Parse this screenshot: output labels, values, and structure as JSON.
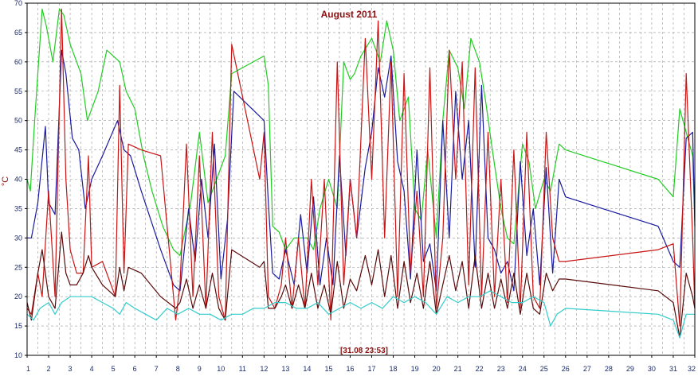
{
  "chart_data": {
    "type": "line",
    "title": "August 2011",
    "ylabel": "°C",
    "xlabel": "",
    "status": "[31.08 23:53]",
    "xlim": [
      1,
      32
    ],
    "ylim": [
      10,
      70
    ],
    "x_ticks": [
      1,
      2,
      3,
      4,
      5,
      6,
      7,
      8,
      9,
      10,
      11,
      12,
      13,
      14,
      15,
      16,
      17,
      18,
      19,
      20,
      21,
      22,
      23,
      24,
      25,
      26,
      27,
      28,
      29,
      30,
      31,
      32
    ],
    "y_ticks": [
      10,
      15,
      20,
      25,
      30,
      35,
      40,
      45,
      50,
      55,
      60,
      65,
      70
    ],
    "grid": true,
    "legend": "none",
    "series": [
      {
        "color": "#22cc22",
        "x": [
          1.0,
          1.15,
          1.35,
          1.7,
          1.9,
          2.2,
          2.5,
          2.7,
          3.0,
          3.5,
          3.8,
          4.3,
          4.7,
          5.3,
          5.6,
          6.0,
          6.4,
          6.8,
          7.3,
          7.8,
          8.1,
          8.6,
          9.0,
          9.4,
          10.2,
          10.5,
          12.0,
          12.2,
          12.4,
          12.7,
          13.0,
          13.4,
          14.0,
          14.3,
          14.6,
          15.0,
          15.4,
          15.7,
          16.0,
          16.2,
          16.5,
          17.0,
          17.4,
          17.7,
          18.0,
          18.3,
          18.7,
          19.0,
          19.3,
          19.6,
          20.0,
          20.3,
          20.6,
          21.0,
          21.3,
          21.6,
          22.0,
          22.3,
          22.6,
          23.0,
          23.3,
          23.6,
          24.0,
          24.3,
          24.6,
          25.0,
          25.3,
          25.7,
          26.0,
          30.3,
          31.0,
          31.3,
          31.6,
          31.9,
          32.0
        ],
        "y": [
          40,
          38,
          50,
          69,
          66,
          60,
          69,
          68,
          63,
          58,
          50,
          55,
          62,
          60,
          55,
          52,
          44,
          38,
          32,
          28,
          27,
          36,
          48,
          36,
          44,
          58,
          61,
          56,
          32,
          31,
          28,
          30,
          30,
          28,
          35,
          40,
          35,
          60,
          57,
          58,
          61,
          64,
          60,
          67,
          62,
          50,
          54,
          35,
          33,
          45,
          30,
          50,
          62,
          59,
          52,
          64,
          60,
          53,
          45,
          35,
          30,
          29,
          46,
          43,
          35,
          40,
          38,
          46,
          45,
          40,
          37,
          52,
          48,
          44,
          33
        ],
        "width": 1.2
      },
      {
        "color": "#1a1aa0",
        "x": [
          1.0,
          1.2,
          1.5,
          1.85,
          2.0,
          2.3,
          2.6,
          2.8,
          3.1,
          3.4,
          3.7,
          4.0,
          4.5,
          5.2,
          5.5,
          5.8,
          6.3,
          7.2,
          7.8,
          8.1,
          8.5,
          8.8,
          9.1,
          9.4,
          9.7,
          10.0,
          10.3,
          10.6,
          12.0,
          12.2,
          12.4,
          12.7,
          13.0,
          13.4,
          13.7,
          14.0,
          14.3,
          14.6,
          14.9,
          15.2,
          15.5,
          15.8,
          16.0,
          16.3,
          16.7,
          17.0,
          17.3,
          17.6,
          17.9,
          18.2,
          18.5,
          18.8,
          19.1,
          19.4,
          19.7,
          20.0,
          20.3,
          20.6,
          20.9,
          21.2,
          21.5,
          21.8,
          22.1,
          22.4,
          22.7,
          23.0,
          23.3,
          23.6,
          23.9,
          24.2,
          24.5,
          24.8,
          25.1,
          25.4,
          25.7,
          26.0,
          30.3,
          31.0,
          31.3,
          31.6,
          31.9,
          32.0
        ],
        "y": [
          30,
          30,
          36,
          49,
          36,
          34,
          62,
          58,
          47,
          45,
          35,
          40,
          44,
          50,
          45,
          44,
          38,
          28,
          22,
          21,
          35,
          26,
          40,
          30,
          46,
          23,
          33,
          55,
          50,
          36,
          24,
          23,
          28,
          22,
          34,
          24,
          37,
          22,
          30,
          22,
          44,
          27,
          40,
          30,
          42,
          48,
          59,
          54,
          61,
          43,
          38,
          23,
          45,
          26,
          29,
          21,
          50,
          30,
          55,
          40,
          50,
          25,
          56,
          30,
          28,
          24,
          26,
          21,
          43,
          27,
          35,
          22,
          42,
          24,
          40,
          37,
          32,
          26,
          25,
          47,
          48,
          32
        ],
        "width": 1.2
      },
      {
        "color": "#c81414",
        "x": [
          1.0,
          1.2,
          1.5,
          1.7,
          2.0,
          2.3,
          2.6,
          2.8,
          3.0,
          3.3,
          3.6,
          3.85,
          4.0,
          4.5,
          5.1,
          5.3,
          5.5,
          5.7,
          6.3,
          7.2,
          7.9,
          8.1,
          8.4,
          8.7,
          9.0,
          9.3,
          9.6,
          9.9,
          10.2,
          10.5,
          11.8,
          12.0,
          12.2,
          12.5,
          12.8,
          13.0,
          13.3,
          13.6,
          13.9,
          14.2,
          14.5,
          14.8,
          15.1,
          15.4,
          15.7,
          16.0,
          16.3,
          16.7,
          17.0,
          17.3,
          17.6,
          17.9,
          18.2,
          18.5,
          18.8,
          19.1,
          19.4,
          19.7,
          20.0,
          20.3,
          20.6,
          20.9,
          21.2,
          21.5,
          21.8,
          22.1,
          22.4,
          22.7,
          23.0,
          23.3,
          23.6,
          23.9,
          24.2,
          24.5,
          24.8,
          25.1,
          25.4,
          25.7,
          26.0,
          30.3,
          31.0,
          31.3,
          31.6,
          31.9,
          32.0
        ],
        "y": [
          18,
          17,
          24,
          20,
          38,
          20,
          69,
          40,
          28,
          24,
          24,
          44,
          25,
          26,
          20,
          56,
          24,
          46,
          45,
          44,
          16,
          22,
          46,
          20,
          44,
          18,
          48,
          20,
          16,
          63,
          40,
          48,
          20,
          18,
          22,
          30,
          18,
          30,
          18,
          40,
          22,
          40,
          16,
          60,
          22,
          40,
          30,
          64,
          40,
          67,
          30,
          60,
          20,
          58,
          24,
          38,
          20,
          59,
          18,
          30,
          62,
          40,
          60,
          22,
          59,
          20,
          48,
          20,
          40,
          19,
          45,
          18,
          48,
          20,
          18,
          48,
          30,
          26,
          26,
          28,
          29,
          15,
          58,
          30,
          18
        ],
        "width": 1.2
      },
      {
        "color": "#5a0a0a",
        "x": [
          1.0,
          1.2,
          1.5,
          1.7,
          2.0,
          2.3,
          2.6,
          2.8,
          3.0,
          3.3,
          3.6,
          3.85,
          4.0,
          4.5,
          5.1,
          5.3,
          5.5,
          5.7,
          6.3,
          7.2,
          7.9,
          8.1,
          8.4,
          8.7,
          9.0,
          9.3,
          9.6,
          9.9,
          10.2,
          10.5,
          11.8,
          12.0,
          12.2,
          12.5,
          12.8,
          13.0,
          13.3,
          13.6,
          13.9,
          14.2,
          14.5,
          14.8,
          15.1,
          15.4,
          15.7,
          16.0,
          16.3,
          16.7,
          17.0,
          17.3,
          17.6,
          17.9,
          18.2,
          18.5,
          18.8,
          19.1,
          19.4,
          19.7,
          20.0,
          20.3,
          20.6,
          20.9,
          21.2,
          21.5,
          21.8,
          22.1,
          22.4,
          22.7,
          23.0,
          23.3,
          23.6,
          23.9,
          24.2,
          24.5,
          24.8,
          25.1,
          25.4,
          25.7,
          26.0,
          30.3,
          31.0,
          31.3,
          31.6,
          31.9,
          32.0
        ],
        "y": [
          19,
          16,
          24,
          28,
          20,
          18,
          31,
          24,
          22,
          22,
          24,
          27,
          25,
          22,
          20,
          25,
          21,
          25,
          24,
          20,
          18,
          19,
          23,
          18,
          22,
          18,
          24,
          18,
          16,
          28,
          25,
          26,
          18,
          18,
          20,
          22,
          18,
          22,
          18,
          24,
          18,
          22,
          17,
          26,
          18,
          23,
          21,
          27,
          22,
          28,
          20,
          27,
          18,
          26,
          19,
          24,
          18,
          26,
          17,
          22,
          27,
          21,
          26,
          18,
          27,
          18,
          24,
          18,
          23,
          18,
          24,
          17,
          24,
          18,
          17,
          24,
          21,
          23,
          23,
          21,
          19,
          13,
          24,
          20,
          18
        ],
        "width": 1.2
      },
      {
        "color": "#33cccc",
        "x": [
          1.0,
          1.3,
          1.6,
          2.0,
          2.3,
          2.6,
          3.0,
          3.5,
          4.0,
          4.5,
          5.0,
          5.3,
          5.6,
          6.0,
          6.5,
          7.0,
          7.5,
          8.0,
          8.5,
          9.0,
          9.5,
          10.0,
          10.5,
          11.0,
          11.5,
          12.0,
          12.5,
          13.0,
          13.5,
          14.0,
          14.5,
          15.0,
          15.5,
          16.0,
          16.5,
          17.0,
          17.5,
          18.0,
          18.5,
          19.0,
          19.5,
          20.0,
          20.5,
          21.0,
          21.5,
          22.0,
          22.5,
          23.0,
          23.5,
          24.0,
          24.5,
          25.0,
          25.3,
          25.6,
          26.0,
          30.3,
          31.0,
          31.3,
          31.6,
          32.0
        ],
        "y": [
          17,
          16,
          18,
          19,
          17,
          19,
          20,
          20,
          20,
          19,
          18,
          17,
          19,
          18,
          17,
          16,
          18,
          17,
          18,
          17,
          17,
          16,
          17,
          17,
          18,
          18,
          19,
          19,
          18,
          18,
          19,
          17,
          18,
          19,
          18,
          19,
          18,
          20,
          19,
          20,
          19,
          17,
          20,
          19,
          20,
          20,
          21,
          20,
          19,
          19,
          20,
          19,
          15,
          17,
          18,
          17,
          16,
          13,
          17,
          17
        ],
        "width": 1.2
      }
    ]
  }
}
